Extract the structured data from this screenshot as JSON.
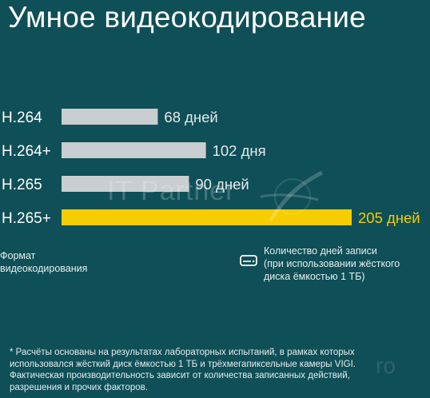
{
  "title": "Умное видеокодирование",
  "chart_data": {
    "type": "bar",
    "orientation": "horizontal",
    "categories": [
      "H.264",
      "H.264+",
      "H.265",
      "H.265+"
    ],
    "values": [
      68,
      102,
      90,
      205
    ],
    "data_labels": [
      "68 дней",
      "102 дня",
      "90 дней",
      "205 дней"
    ],
    "highlight_index": 3,
    "colors": {
      "bar": "#c9ced0",
      "highlight": "#f5cd00",
      "highlight_label": "#f5cd00",
      "label": "#ffffff"
    },
    "xlim": [
      0,
      205
    ],
    "grid": false,
    "xlabel": "",
    "ylabel": ""
  },
  "format_label": [
    "Формат",
    "видеокодирования"
  ],
  "days_label": [
    "Количество дней записи",
    "(при использовании жёсткого",
    "диска ёмкостью 1 ТБ)"
  ],
  "disk_icon": "hard-drive-icon",
  "footnote": [
    "* Расчёты основаны на результатах лабораторных испытаний, в рамках которых",
    "использовался жёсткий диск ёмкостью 1 ТБ и трёхмегапиксельные камеры VIGI.",
    "Фактическая производительность зависит от количества записанных действий,",
    "разрешения и прочих факторов."
  ],
  "watermark": {
    "text": "IT Partner",
    "right_text": "ro"
  }
}
